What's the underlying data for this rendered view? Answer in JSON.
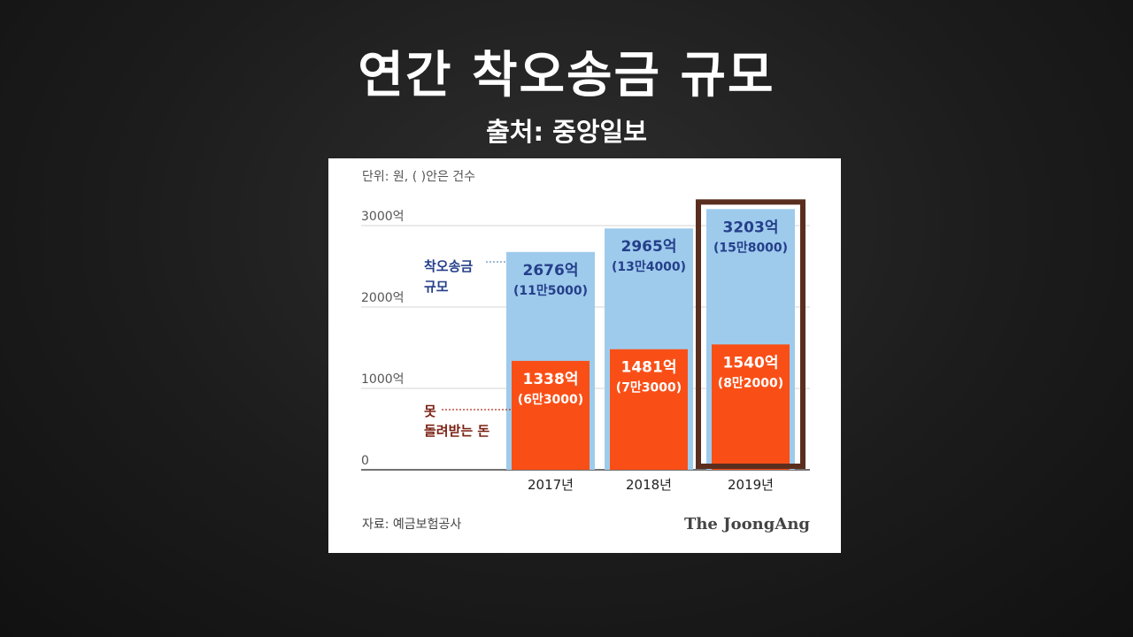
{
  "slide": {
    "title": "연간 착오송금 규모",
    "subtitle": "출처: 중앙일보"
  },
  "chart_data": {
    "type": "bar",
    "unit_note": "단위: 원, ( )안은 건수",
    "categories": [
      "2017년",
      "2018년",
      "2019년"
    ],
    "y_ticks": [
      "3000억",
      "2000억",
      "1000억",
      "0"
    ],
    "ylim": [
      0,
      3000
    ],
    "grid": true,
    "series": [
      {
        "name": "착오송금 규모",
        "color": "#9ecbec",
        "values": [
          2676,
          2965,
          3203
        ],
        "value_labels": [
          "2676억",
          "2965억",
          "3203억"
        ],
        "count_labels": [
          "(11만5000)",
          "(13만4000)",
          "(15만8000)"
        ]
      },
      {
        "name": "못 돌려받는 돈",
        "color": "#f94f17",
        "values": [
          1338,
          1481,
          1540
        ],
        "value_labels": [
          "1338억",
          "1481억",
          "1540억"
        ],
        "count_labels": [
          "(6만3000)",
          "(7만3000)",
          "(8만2000)"
        ]
      }
    ],
    "legend_labels": {
      "total_line1": "착오송금",
      "total_line2": "규모",
      "unreturned_line1": "못",
      "unreturned_line2": "돌려받는 돈"
    },
    "highlight_category": "2019년",
    "highlight_color": "#5a2e1e",
    "source": "자료: 예금보험공사",
    "brand": "The JoongAng"
  }
}
